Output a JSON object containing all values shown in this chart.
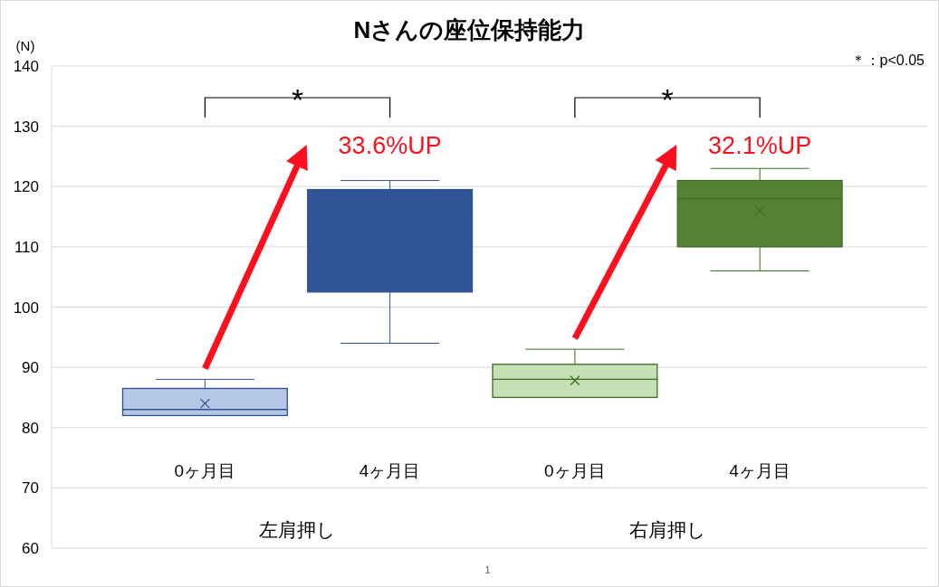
{
  "chart_data": {
    "type": "box",
    "title": "Nさんの座位保持能力",
    "ylabel": "(N)",
    "categories": [
      "0ヶ月目",
      "4ヶ月目",
      "0ヶ月目",
      "4ヶ月目"
    ],
    "boxes": [
      {
        "low": 82,
        "q1": 82,
        "median": 83,
        "q3": 86.5,
        "high": 88,
        "mean": 84
      },
      {
        "low": 94,
        "q1": 102.5,
        "median": 117,
        "q3": 119.5,
        "high": 121,
        "mean": 112.3
      },
      {
        "low": 85,
        "q1": 85,
        "median": 88,
        "q3": 90.5,
        "high": 93,
        "mean": 87.8
      },
      {
        "low": 106,
        "q1": 110,
        "median": 118,
        "q3": 121,
        "high": 123,
        "mean": 116
      }
    ],
    "colors": [
      "#b4c7e7",
      "#2f5597",
      "#c5e0b4",
      "#548235"
    ],
    "ylim": [
      60,
      140
    ],
    "yticks": [
      60,
      70,
      80,
      90,
      100,
      110,
      120,
      130,
      140
    ],
    "grid": "y",
    "marker": "cross",
    "annotations": [
      "＊：p<0.05",
      "*",
      "*",
      "33.6%UP",
      "32.1%UP",
      "左肩押し",
      "右肩押し",
      "1"
    ]
  }
}
